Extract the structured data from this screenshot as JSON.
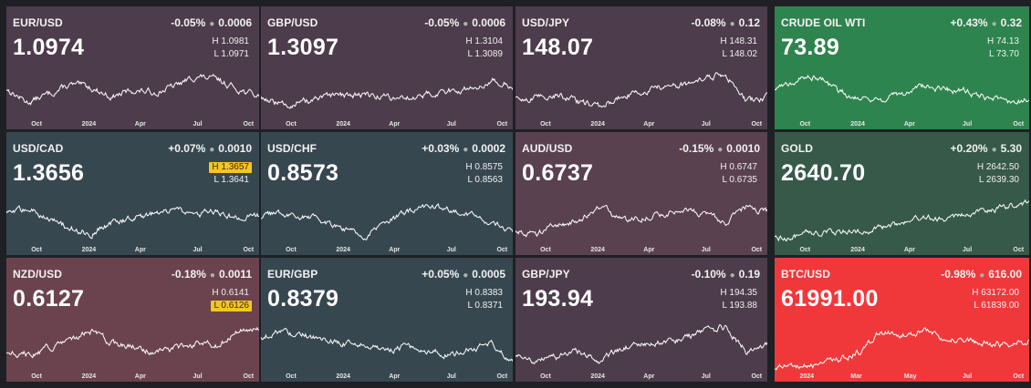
{
  "tiles": [
    {
      "symbol": "EUR/USD",
      "change_pct": "-0.05%",
      "change_abs": "0.0006",
      "price": "1.0974",
      "high": "H 1.0981",
      "low": "L 1.0971",
      "high_flag": false,
      "low_flag": false,
      "bg": "#4d3c4b",
      "axis_labels": [
        "Oct",
        "2024",
        "Apr",
        "Jul",
        "Oct"
      ],
      "trend": [
        0.55,
        0.3,
        0.45,
        0.62,
        0.58,
        0.4,
        0.52,
        0.48,
        0.6,
        0.78,
        0.72,
        0.55,
        0.4
      ]
    },
    {
      "symbol": "GBP/USD",
      "change_pct": "-0.05%",
      "change_abs": "0.0006",
      "price": "1.3097",
      "high": "H 1.3104",
      "low": "L 1.3089",
      "high_flag": false,
      "low_flag": false,
      "bg": "#4d3c4b",
      "axis_labels": [
        "Oct",
        "2024",
        "Apr",
        "Jul",
        "Oct"
      ],
      "trend": [
        0.4,
        0.25,
        0.3,
        0.38,
        0.42,
        0.45,
        0.4,
        0.38,
        0.45,
        0.5,
        0.55,
        0.72,
        0.6
      ]
    },
    {
      "symbol": "USD/JPY",
      "change_pct": "-0.08%",
      "change_abs": "0.12",
      "price": "148.07",
      "high": "H 148.31",
      "low": "L 148.02",
      "high_flag": false,
      "low_flag": false,
      "bg": "#4d3c4b",
      "axis_labels": [
        "Oct",
        "2024",
        "Apr",
        "Jul",
        "Oct"
      ],
      "trend": [
        0.35,
        0.38,
        0.45,
        0.3,
        0.2,
        0.4,
        0.5,
        0.58,
        0.62,
        0.72,
        0.85,
        0.3,
        0.4
      ]
    },
    {
      "symbol": "CRUDE OIL WTI",
      "change_pct": "+0.43%",
      "change_abs": "0.32",
      "price": "73.89",
      "high": "H 74.13",
      "low": "L 73.70",
      "high_flag": false,
      "low_flag": false,
      "bg": "#2e844e",
      "axis_labels": [
        "Oct",
        "2024",
        "Apr",
        "Jul",
        "Oct"
      ],
      "trend": [
        0.55,
        0.7,
        0.8,
        0.5,
        0.4,
        0.35,
        0.45,
        0.6,
        0.55,
        0.5,
        0.4,
        0.3,
        0.35
      ]
    },
    {
      "symbol": "USD/CAD",
      "change_pct": "+0.07%",
      "change_abs": "0.0010",
      "price": "1.3656",
      "high": "H 1.3657",
      "low": "L 1.3641",
      "high_flag": true,
      "low_flag": false,
      "bg": "#374750",
      "axis_labels": [
        "Oct",
        "2024",
        "Apr",
        "Jul",
        "Oct"
      ],
      "trend": [
        0.55,
        0.65,
        0.5,
        0.3,
        0.2,
        0.4,
        0.5,
        0.55,
        0.62,
        0.55,
        0.6,
        0.48,
        0.55
      ]
    },
    {
      "symbol": "USD/CHF",
      "change_pct": "+0.03%",
      "change_abs": "0.0002",
      "price": "0.8573",
      "high": "H 0.8575",
      "low": "L 0.8563",
      "high_flag": false,
      "low_flag": false,
      "bg": "#374750",
      "axis_labels": [
        "Oct",
        "2024",
        "Apr",
        "Jul",
        "Oct"
      ],
      "trend": [
        0.5,
        0.58,
        0.52,
        0.45,
        0.3,
        0.15,
        0.4,
        0.6,
        0.7,
        0.62,
        0.55,
        0.4,
        0.25
      ]
    },
    {
      "symbol": "AUD/USD",
      "change_pct": "-0.15%",
      "change_abs": "0.0010",
      "price": "0.6737",
      "high": "H 0.6747",
      "low": "L 0.6735",
      "high_flag": false,
      "low_flag": false,
      "bg": "#5a4150",
      "axis_labels": [
        "Oct",
        "2024",
        "Apr",
        "Jul",
        "Oct"
      ],
      "trend": [
        0.25,
        0.2,
        0.35,
        0.45,
        0.7,
        0.45,
        0.5,
        0.55,
        0.65,
        0.55,
        0.4,
        0.7,
        0.6
      ]
    },
    {
      "symbol": "GOLD",
      "change_pct": "+0.20%",
      "change_abs": "5.30",
      "price": "2640.70",
      "high": "H 2642.50",
      "low": "L 2639.30",
      "high_flag": false,
      "low_flag": false,
      "bg": "#36594a",
      "axis_labels": [
        "Oct",
        "2024",
        "Apr",
        "Jul",
        "Oct"
      ],
      "trend": [
        0.1,
        0.15,
        0.2,
        0.25,
        0.25,
        0.3,
        0.4,
        0.45,
        0.5,
        0.55,
        0.6,
        0.7,
        0.78
      ]
    },
    {
      "symbol": "NZD/USD",
      "change_pct": "-0.18%",
      "change_abs": "0.0011",
      "price": "0.6127",
      "high": "H 0.6141",
      "low": "L 0.6126",
      "high_flag": false,
      "low_flag": true,
      "bg": "#6b434f",
      "axis_labels": [
        "Oct",
        "2024",
        "Apr",
        "Jul",
        "Oct"
      ],
      "trend": [
        0.35,
        0.3,
        0.4,
        0.55,
        0.72,
        0.5,
        0.45,
        0.35,
        0.4,
        0.5,
        0.45,
        0.7,
        0.75
      ]
    },
    {
      "symbol": "EUR/GBP",
      "change_pct": "+0.05%",
      "change_abs": "0.0005",
      "price": "0.8379",
      "high": "H 0.8383",
      "low": "L 0.8371",
      "high_flag": false,
      "low_flag": false,
      "bg": "#374750",
      "axis_labels": [
        "Oct",
        "2024",
        "Apr",
        "Jul",
        "Oct"
      ],
      "trend": [
        0.6,
        0.72,
        0.65,
        0.55,
        0.5,
        0.45,
        0.4,
        0.42,
        0.35,
        0.3,
        0.4,
        0.5,
        0.2
      ]
    },
    {
      "symbol": "GBP/JPY",
      "change_pct": "-0.10%",
      "change_abs": "0.19",
      "price": "193.94",
      "high": "H 194.35",
      "low": "L 193.88",
      "high_flag": false,
      "low_flag": false,
      "bg": "#4d3c4b",
      "axis_labels": [
        "Oct",
        "2024",
        "Apr",
        "Jul",
        "Oct"
      ],
      "trend": [
        0.3,
        0.2,
        0.25,
        0.35,
        0.2,
        0.4,
        0.5,
        0.55,
        0.6,
        0.7,
        0.8,
        0.35,
        0.45
      ]
    },
    {
      "symbol": "BTC/USD",
      "change_pct": "-0.98%",
      "change_abs": "616.00",
      "price": "61991.00",
      "high": "H 63172.00",
      "low": "L 61839.00",
      "high_flag": false,
      "low_flag": false,
      "bg": "#f0383b",
      "axis_labels": [
        "2024",
        "Mar",
        "May",
        "Jul",
        "Oct"
      ],
      "trend": [
        0.05,
        0.08,
        0.1,
        0.2,
        0.35,
        0.7,
        0.65,
        0.72,
        0.6,
        0.55,
        0.5,
        0.45,
        0.55
      ]
    }
  ],
  "colors": {
    "page_bg": "#1e2026",
    "highlight": "#f3c623",
    "line": "#ffffff"
  }
}
